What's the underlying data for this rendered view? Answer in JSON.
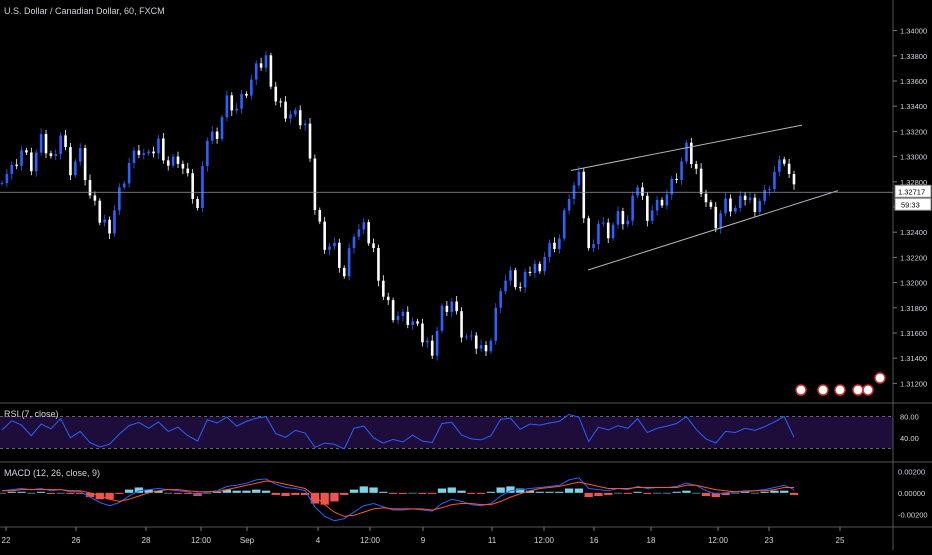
{
  "header": {
    "symbol_title": "U.S. Dollar / Canadian Dollar, 60, FXCM"
  },
  "price_panel": {
    "current_price": "1.32717",
    "countdown": "59:33",
    "y_ticks": [
      "1.34000",
      "1.33800",
      "1.33600",
      "1.33400",
      "1.33200",
      "1.33000",
      "1.32800",
      "1.32600",
      "1.32400",
      "1.32200",
      "1.32000",
      "1.31800",
      "1.31600",
      "1.31400",
      "1.31200"
    ]
  },
  "rsi_panel": {
    "title": "RSI (7, close)",
    "y_ticks": [
      "80.00",
      "40.00"
    ]
  },
  "macd_panel": {
    "title": "MACD (12, 26, close, 9)",
    "y_ticks": [
      "0.00200",
      "0.00000",
      "-0.00200"
    ]
  },
  "x_axis": {
    "labels": [
      "22",
      "26",
      "28",
      "12:00",
      "Sep",
      "4",
      "12:00",
      "9",
      "11",
      "12:00",
      "16",
      "18",
      "12:00",
      "23",
      "25"
    ]
  },
  "colors": {
    "background": "#000000",
    "candle_up": "#2962ff",
    "candle_down": "#ffffff",
    "trendline": "#b2b5be",
    "rsi_line": "#2962ff",
    "rsi_band": "#1e0c3a",
    "macd_line": "#2962ff",
    "signal_line": "#ff5722",
    "hist_pos": "#7fd3e6",
    "hist_neg": "#ef5350"
  },
  "chart_data": [
    {
      "type": "line",
      "name": "price",
      "ylim": [
        1.311,
        1.341
      ],
      "points": [
        [
          0,
          1.3285
        ],
        [
          2,
          1.329
        ],
        [
          4,
          1.3305
        ],
        [
          6,
          1.3292
        ],
        [
          8,
          1.3312
        ],
        [
          10,
          1.3298
        ],
        [
          12,
          1.3318
        ],
        [
          14,
          1.329
        ],
        [
          16,
          1.3302
        ],
        [
          18,
          1.3268
        ],
        [
          20,
          1.325
        ],
        [
          22,
          1.3245
        ],
        [
          24,
          1.3272
        ],
        [
          26,
          1.3295
        ],
        [
          28,
          1.3305
        ],
        [
          30,
          1.3298
        ],
        [
          32,
          1.3312
        ],
        [
          34,
          1.3294
        ],
        [
          36,
          1.3299
        ],
        [
          38,
          1.3282
        ],
        [
          40,
          1.3258
        ],
        [
          42,
          1.3315
        ],
        [
          44,
          1.332
        ],
        [
          46,
          1.3345
        ],
        [
          48,
          1.3338
        ],
        [
          50,
          1.3352
        ],
        [
          52,
          1.3368
        ],
        [
          54,
          1.3378
        ],
        [
          56,
          1.3345
        ],
        [
          58,
          1.3335
        ],
        [
          60,
          1.3332
        ],
        [
          62,
          1.3325
        ],
        [
          64,
          1.326
        ],
        [
          66,
          1.3232
        ],
        [
          68,
          1.3228
        ],
        [
          70,
          1.3205
        ],
        [
          72,
          1.324
        ],
        [
          74,
          1.3242
        ],
        [
          76,
          1.3225
        ],
        [
          78,
          1.319
        ],
        [
          80,
          1.3175
        ],
        [
          82,
          1.3172
        ],
        [
          84,
          1.3168
        ],
        [
          86,
          1.3155
        ],
        [
          88,
          1.3148
        ],
        [
          90,
          1.3178
        ],
        [
          92,
          1.3185
        ],
        [
          94,
          1.316
        ],
        [
          96,
          1.3152
        ],
        [
          98,
          1.3148
        ],
        [
          100,
          1.3155
        ],
        [
          102,
          1.3198
        ],
        [
          104,
          1.3205
        ],
        [
          106,
          1.3195
        ],
        [
          108,
          1.321
        ],
        [
          110,
          1.3215
        ],
        [
          112,
          1.3228
        ],
        [
          114,
          1.3235
        ],
        [
          116,
          1.327
        ],
        [
          118,
          1.3282
        ],
        [
          120,
          1.3225
        ],
        [
          122,
          1.3248
        ],
        [
          124,
          1.324
        ],
        [
          126,
          1.3252
        ],
        [
          128,
          1.3248
        ],
        [
          130,
          1.3278
        ],
        [
          132,
          1.3255
        ],
        [
          134,
          1.3262
        ],
        [
          136,
          1.327
        ],
        [
          138,
          1.3285
        ],
        [
          140,
          1.3305
        ],
        [
          142,
          1.3288
        ],
        [
          144,
          1.3265
        ],
        [
          146,
          1.3248
        ],
        [
          148,
          1.3262
        ],
        [
          150,
          1.3258
        ],
        [
          152,
          1.3268
        ],
        [
          154,
          1.3262
        ],
        [
          156,
          1.327
        ],
        [
          158,
          1.3288
        ],
        [
          160,
          1.3298
        ],
        [
          162,
          1.3272
        ]
      ]
    },
    {
      "type": "line",
      "name": "RSI (7, close)",
      "ylim": [
        0,
        100
      ],
      "reference_lines": [
        80,
        20
      ],
      "values": [
        55,
        72,
        64,
        44,
        66,
        57,
        76,
        40,
        52,
        31,
        23,
        28,
        47,
        63,
        69,
        58,
        70,
        52,
        60,
        44,
        34,
        74,
        68,
        79,
        62,
        71,
        77,
        80,
        48,
        41,
        54,
        49,
        22,
        30,
        28,
        19,
        58,
        62,
        40,
        30,
        37,
        32,
        45,
        34,
        31,
        67,
        69,
        45,
        38,
        36,
        44,
        75,
        77,
        56,
        66,
        64,
        68,
        71,
        84,
        79,
        33,
        60,
        55,
        63,
        58,
        76,
        50,
        58,
        62,
        67,
        80,
        56,
        38,
        30,
        52,
        50,
        58,
        54,
        61,
        70,
        80,
        41
      ]
    },
    {
      "type": "line",
      "name": "MACD (12, 26, close, 9)",
      "ylim": [
        -0.003,
        0.0025
      ],
      "series": [
        {
          "name": "MACD",
          "values": [
            0.0002,
            0.0003,
            0.0004,
            0.0003,
            0.0004,
            0.0002,
            0.0003,
            0.0001,
            0.0001,
            -0.0004,
            -0.0009,
            -0.0012,
            -0.0009,
            -0.0003,
            0.0002,
            0.0003,
            0.0004,
            0.0003,
            0.0002,
            0.0001,
            -0.0002,
            0.0001,
            0.0002,
            0.0006,
            0.0007,
            0.0009,
            0.0012,
            0.0013,
            0.0008,
            0.0005,
            0.0004,
            0.0002,
            -0.0013,
            -0.0022,
            -0.0026,
            -0.0024,
            -0.0018,
            -0.0012,
            -0.001,
            -0.0013,
            -0.0016,
            -0.0016,
            -0.0015,
            -0.0016,
            -0.0017,
            -0.001,
            -0.0006,
            -0.0008,
            -0.0011,
            -0.0012,
            -0.001,
            -0.0003,
            0.0002,
            0.0003,
            0.0004,
            0.0005,
            0.0006,
            0.0007,
            0.0012,
            0.0014,
            0.0004,
            0.0003,
            0.0002,
            0.0004,
            0.0003,
            0.0006,
            0.0004,
            0.0005,
            0.0005,
            0.0006,
            0.0009,
            0.0007,
            0.0002,
            -0.0001,
            0.0,
            0.0001,
            0.0002,
            0.0002,
            0.0003,
            0.0005,
            0.0007,
            0.0003
          ]
        },
        {
          "name": "Signal",
          "values": [
            0.0002,
            0.0002,
            0.0003,
            0.0003,
            0.0003,
            0.0003,
            0.0003,
            0.0002,
            0.0002,
            0.0,
            -0.0003,
            -0.0006,
            -0.0008,
            -0.0006,
            -0.0003,
            0.0,
            0.0002,
            0.0003,
            0.0003,
            0.0002,
            0.0001,
            0.0001,
            0.0001,
            0.0003,
            0.0005,
            0.0007,
            0.0009,
            0.0011,
            0.001,
            0.0008,
            0.0006,
            0.0004,
            -0.0003,
            -0.0011,
            -0.0018,
            -0.0022,
            -0.0021,
            -0.0018,
            -0.0015,
            -0.0014,
            -0.0015,
            -0.0015,
            -0.0015,
            -0.0015,
            -0.0016,
            -0.0014,
            -0.0011,
            -0.001,
            -0.001,
            -0.0011,
            -0.0011,
            -0.0008,
            -0.0004,
            -0.0001,
            0.0002,
            0.0004,
            0.0005,
            0.0006,
            0.0008,
            0.001,
            0.0008,
            0.0006,
            0.0004,
            0.0004,
            0.0004,
            0.0005,
            0.0005,
            0.0005,
            0.0005,
            0.0005,
            0.0007,
            0.0007,
            0.0005,
            0.0003,
            0.0002,
            0.0001,
            0.0001,
            0.0002,
            0.0002,
            0.0003,
            0.0005,
            0.0005
          ]
        }
      ]
    }
  ]
}
